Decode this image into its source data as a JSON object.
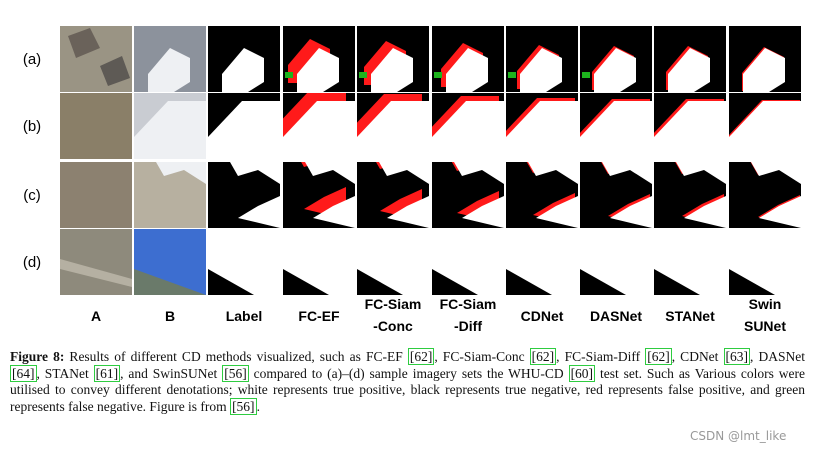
{
  "row_labels": [
    "(a)",
    "(b)",
    "(c)",
    "(d)"
  ],
  "column_labels": [
    [
      "A"
    ],
    [
      "B"
    ],
    [
      "Label"
    ],
    [
      "FC-EF"
    ],
    [
      "FC-Siam",
      "-Conc"
    ],
    [
      "FC-Siam",
      "-Diff"
    ],
    [
      "CDNet"
    ],
    [
      "DASNet"
    ],
    [
      "STANet"
    ],
    [
      "Swin",
      "SUNet"
    ]
  ],
  "caption": {
    "label": "Figure 8:",
    "parts": [
      {
        "text": " Results of different CD methods visualized, such as FC-EF "
      },
      {
        "cite": "[62]"
      },
      {
        "text": ", FC-Siam-Conc "
      },
      {
        "cite": "[62]"
      },
      {
        "text": ", FC-Siam-Diff "
      },
      {
        "cite": "[62]"
      },
      {
        "text": ", CDNet "
      },
      {
        "cite": "[63]"
      },
      {
        "text": ", DASNet "
      },
      {
        "cite": "[64]"
      },
      {
        "text": ", STANet "
      },
      {
        "cite": "[61]"
      },
      {
        "text": ", and SwinSUNet "
      },
      {
        "cite": "[56]"
      },
      {
        "text": " compared to (a)–(d) sample imagery sets the WHU-CD "
      },
      {
        "cite": "[60]"
      },
      {
        "text": " test set. Such as Various colors were utilised to convey different denotations; white represents true positive, black represents true negative, red represents false positive, and green represents false negative. Figure is from "
      },
      {
        "cite": "[56]"
      },
      {
        "text": "."
      }
    ]
  },
  "watermark": "CSDN @lmt_like"
}
